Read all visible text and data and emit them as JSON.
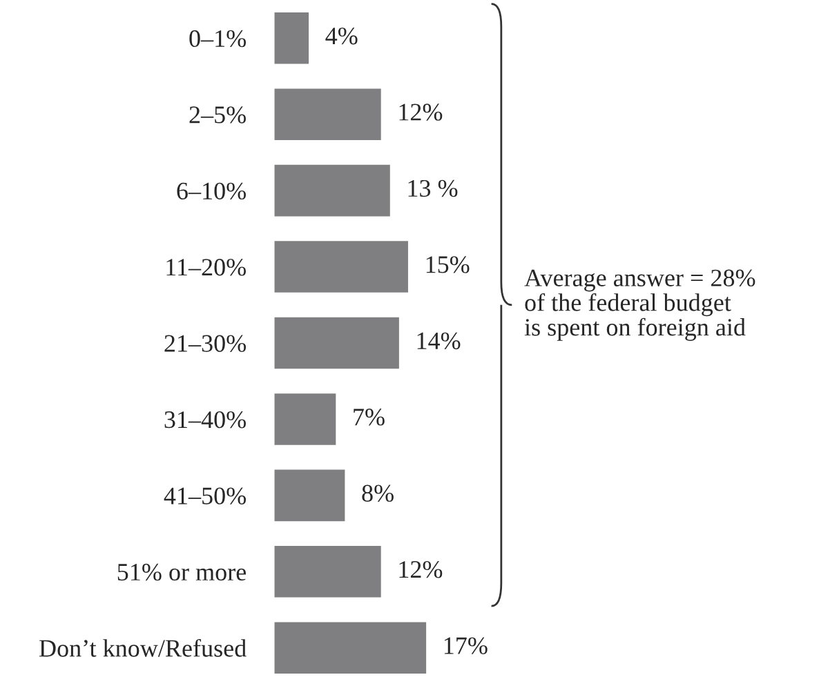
{
  "chart_data": {
    "type": "bar",
    "orientation": "horizontal",
    "categories": [
      "0–1%",
      "2–5%",
      "6–10%",
      "11–20%",
      "21–30%",
      "31–40%",
      "41–50%",
      "51% or more",
      "Don’t know/Refused"
    ],
    "values": [
      4,
      12,
      13,
      15,
      14,
      7,
      8,
      12,
      17
    ],
    "value_labels": [
      "4%",
      "12%",
      "13 %",
      "15%",
      "14%",
      "7%",
      "8%",
      "12%",
      "17%"
    ],
    "color": "#7f7f81",
    "annotations": [
      "Average answer = 28%\nof the federal budget\nis spent on foreign aid"
    ],
    "grid": false,
    "legend": false
  }
}
